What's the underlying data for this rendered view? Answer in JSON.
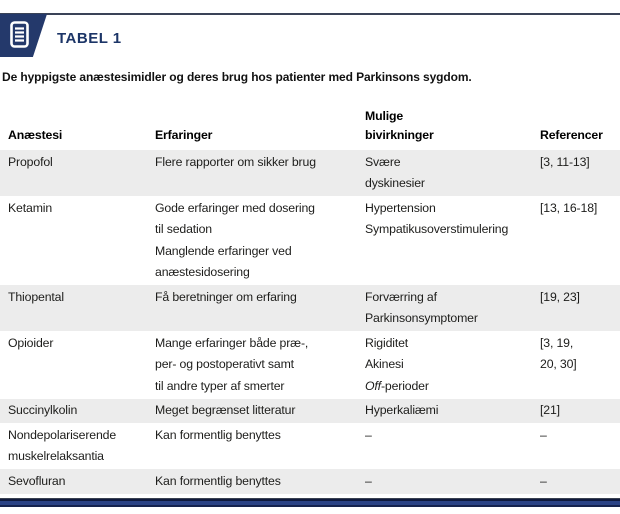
{
  "colors": {
    "navy": "#24396b",
    "navy_text": "#1c3567",
    "topline": "#3a4357",
    "stripe": "#ececec"
  },
  "header": {
    "badge_label": "TABEL 1",
    "icon": "document-lines-icon"
  },
  "caption": "De hyppigste anæstesimidler og deres brug hos patienter med Parkinsons sygdom.",
  "table": {
    "columns": [
      "Anæstesi",
      "Erfaringer",
      "Mulige\nbivirkninger",
      "Referencer"
    ],
    "rows": [
      {
        "cells": [
          [
            "Propofol"
          ],
          [
            "Flere rapporter om sikker brug"
          ],
          [
            "Svære",
            "dyskinesier"
          ],
          [
            "[3, 11-13]"
          ]
        ]
      },
      {
        "cells": [
          [
            "Ketamin"
          ],
          [
            "Gode erfaringer med dosering",
            "til sedation",
            "Manglende erfaringer ved",
            "anæstesidosering"
          ],
          [
            "Hypertension",
            "Sympatikusoverstimulering"
          ],
          [
            "[13, 16-18]"
          ]
        ]
      },
      {
        "cells": [
          [
            "Thiopental"
          ],
          [
            "Få beretninger om erfaring"
          ],
          [
            "Forværring af",
            "Parkinsonsymptomer"
          ],
          [
            "[19, 23]"
          ]
        ]
      },
      {
        "cells": [
          [
            "Opioider"
          ],
          [
            "Mange erfaringer både præ-,",
            "per- og postoperativt samt",
            "til andre typer af smerter"
          ],
          [
            "Rigiditet",
            "Akinesi",
            {
              "italic": "Off",
              "text": "-perioder"
            }
          ],
          [
            "[3, 19,",
            "20, 30]"
          ]
        ]
      },
      {
        "cells": [
          [
            "Succinylkolin"
          ],
          [
            "Meget begrænset litteratur"
          ],
          [
            "Hyperkaliæmi"
          ],
          [
            "[21]"
          ]
        ]
      },
      {
        "cells": [
          [
            "Nondepolariserende",
            "muskelrelaksantia"
          ],
          [
            "Kan formentlig benyttes"
          ],
          [
            "–"
          ],
          [
            "–"
          ]
        ]
      },
      {
        "cells": [
          [
            "Sevofluran"
          ],
          [
            "Kan formentlig benyttes"
          ],
          [
            "–"
          ],
          [
            "–"
          ]
        ]
      }
    ]
  }
}
